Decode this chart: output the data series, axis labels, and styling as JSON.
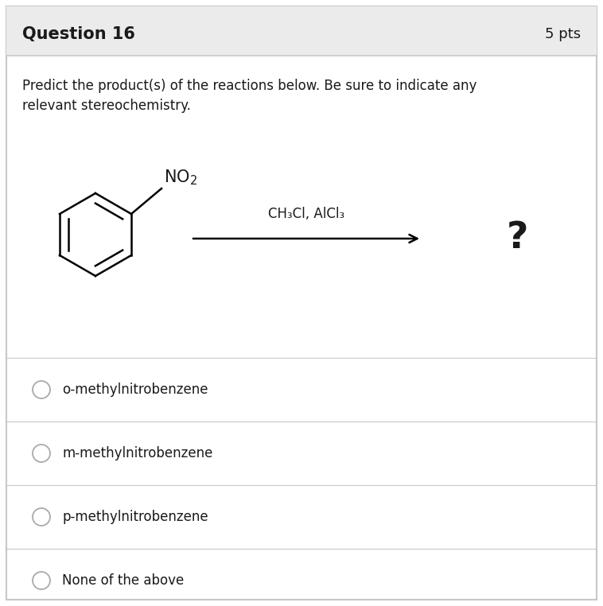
{
  "title": "Question 16",
  "pts": "5 pts",
  "header_bg": "#ebebeb",
  "body_bg": "#ffffff",
  "border_color": "#c8c8c8",
  "question_text_line1": "Predict the product(s) of the reactions below. Be sure to indicate any",
  "question_text_line2": "relevant stereochemistry.",
  "reagents_label": "CH₃Cl, AlCl₃",
  "no2_label": "NO₂",
  "product_label": "?",
  "options": [
    "o-methylnitrobenzene",
    "m-methylnitrobenzene",
    "p-methylnitrobenzene",
    "None of the above"
  ],
  "title_fontsize": 15,
  "pts_fontsize": 13,
  "body_fontsize": 12,
  "option_fontsize": 12,
  "reagent_fontsize": 12,
  "text_color": "#1a1a1a",
  "radio_color": "#aaaaaa",
  "fig_width": 7.58,
  "fig_height": 7.62,
  "dpi": 100
}
